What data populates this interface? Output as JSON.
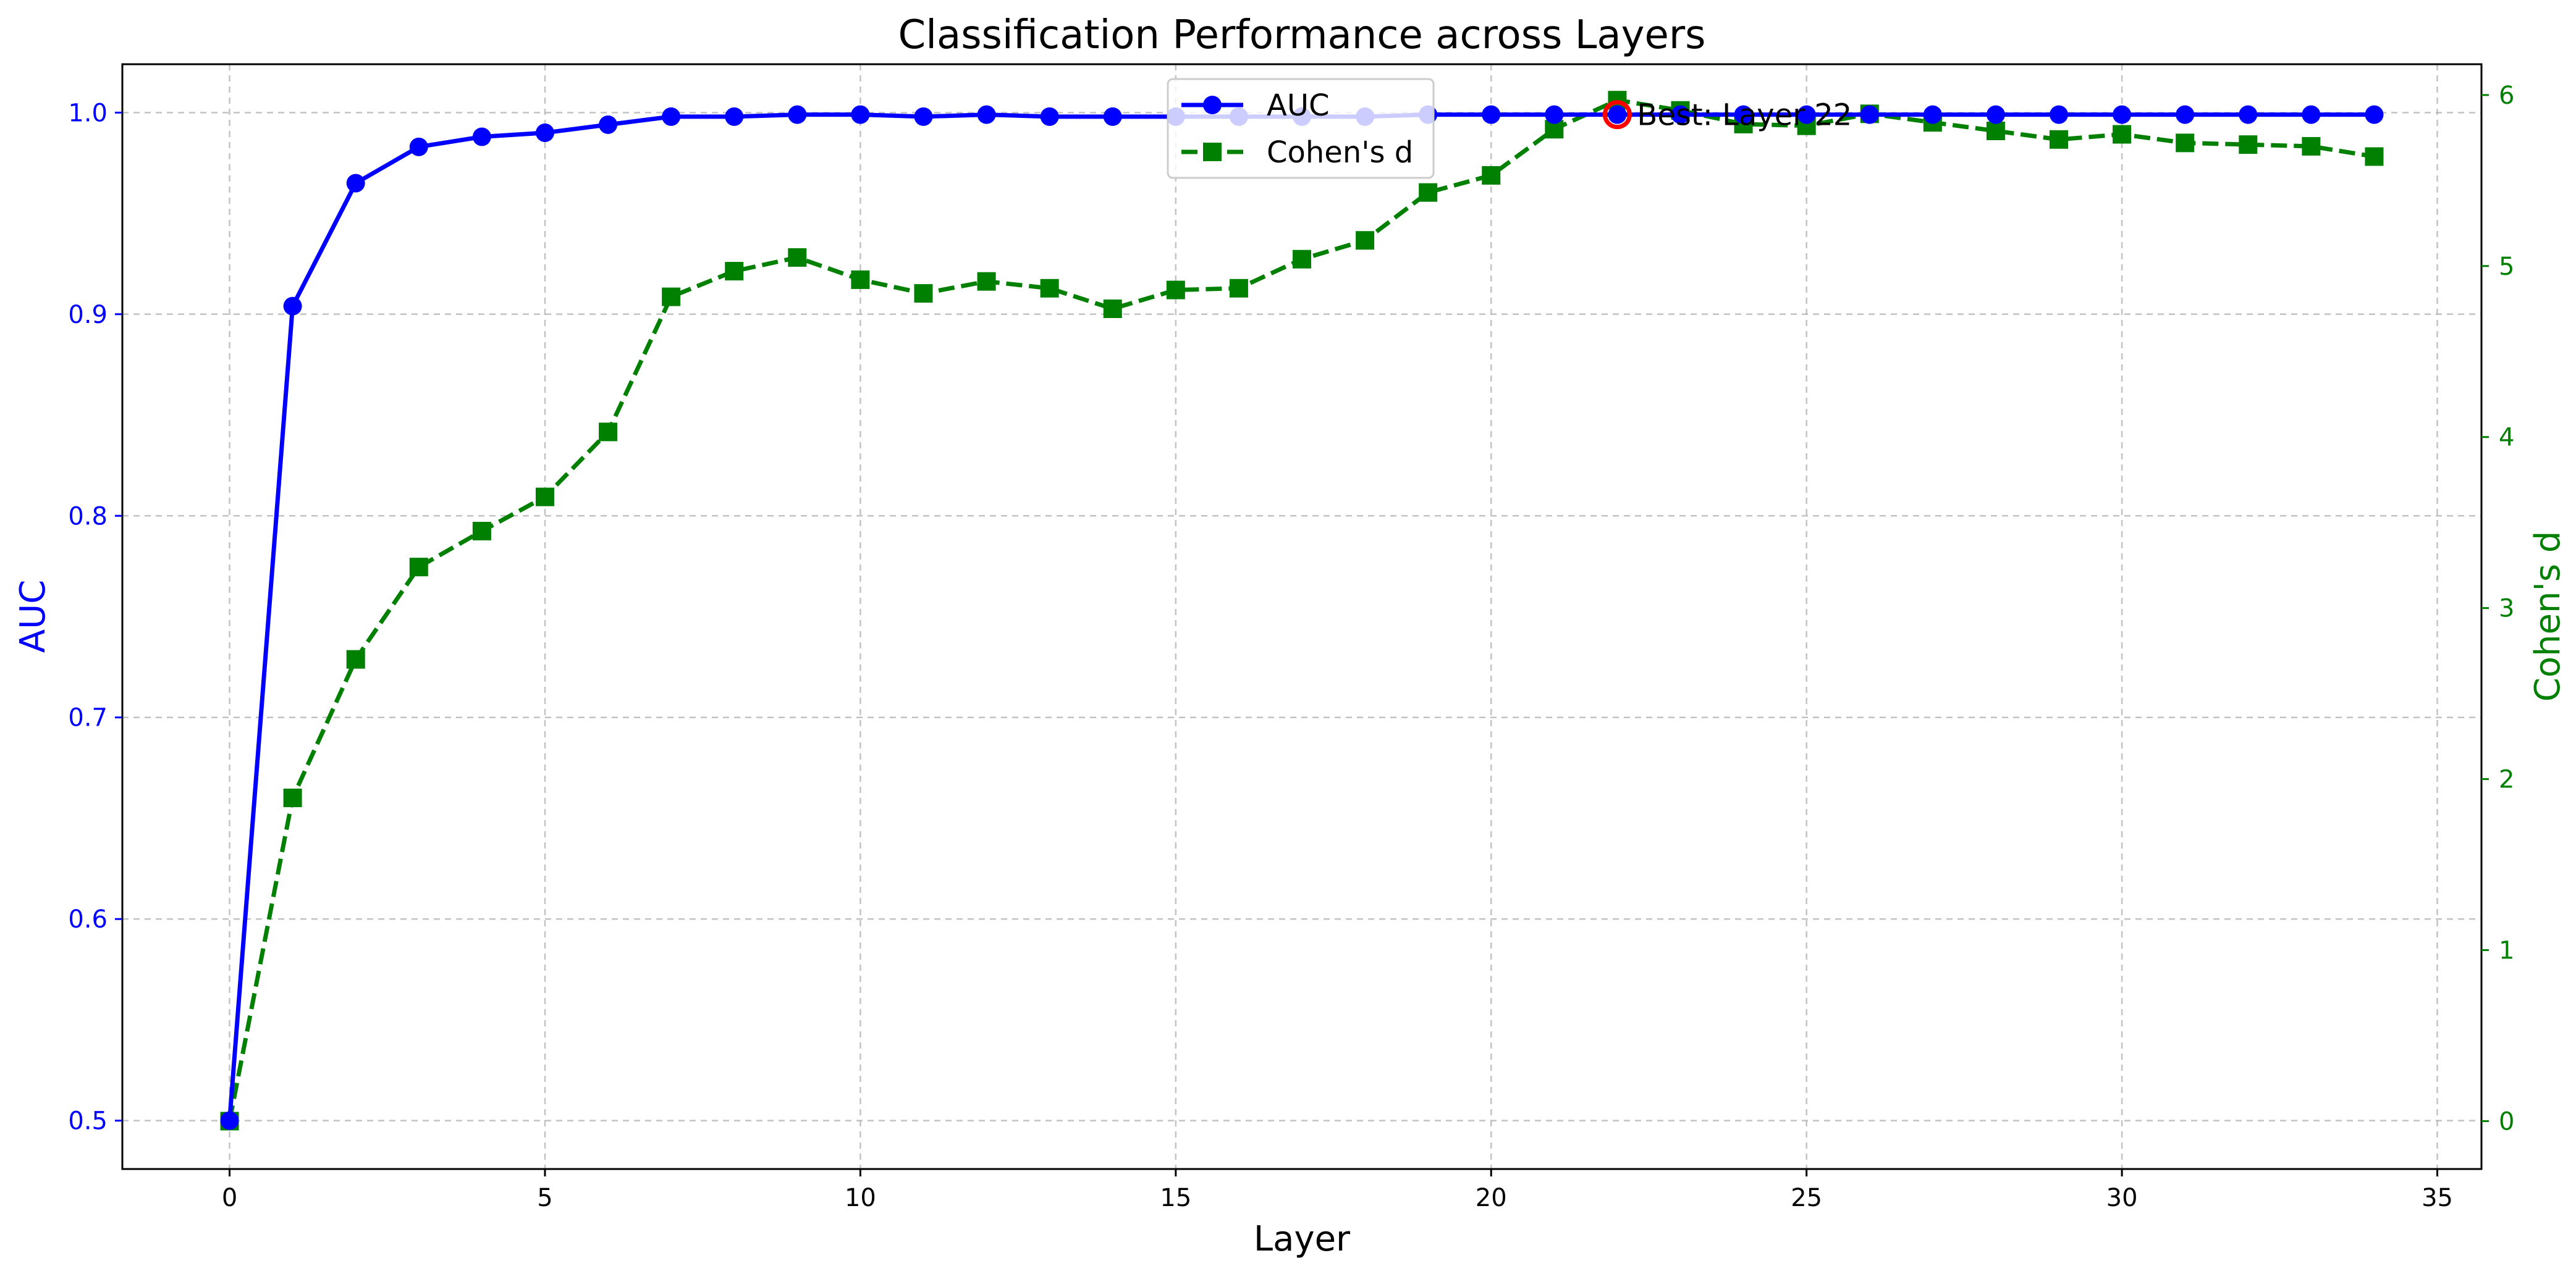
{
  "chart_data": {
    "type": "line",
    "title": "Classification Performance across Layers",
    "xlabel": "Layer",
    "ylabel_left": "AUC",
    "ylabel_right": "Cohen's d",
    "xlim": [
      -1.7,
      35.7
    ],
    "ylim_left": [
      0.476,
      1.024
    ],
    "ylim_right": [
      -0.28,
      6.18
    ],
    "x_ticks": [
      0,
      5,
      10,
      15,
      20,
      25,
      30,
      35
    ],
    "y_ticks_left": [
      0.5,
      0.6,
      0.7,
      0.8,
      0.9,
      1.0
    ],
    "y_ticks_left_labels": [
      "0.5",
      "0.6",
      "0.7",
      "0.8",
      "0.9",
      "1.0"
    ],
    "y_ticks_right": [
      0,
      1,
      2,
      3,
      4,
      5,
      6
    ],
    "grid": true,
    "legend_position": "top-center",
    "x": [
      0,
      1,
      2,
      3,
      4,
      5,
      6,
      7,
      8,
      9,
      10,
      11,
      12,
      13,
      14,
      15,
      16,
      17,
      18,
      19,
      20,
      21,
      22,
      23,
      24,
      25,
      26,
      27,
      28,
      29,
      30,
      31,
      32,
      33,
      34
    ],
    "series": [
      {
        "name": "AUC",
        "axis": "left",
        "color": "#0000ff",
        "marker": "circle",
        "line_style": "solid",
        "values": [
          0.5,
          0.904,
          0.965,
          0.983,
          0.988,
          0.99,
          0.994,
          0.998,
          0.998,
          0.999,
          0.999,
          0.998,
          0.999,
          0.998,
          0.998,
          0.998,
          0.998,
          0.998,
          0.998,
          0.999,
          0.999,
          0.999,
          0.999,
          0.999,
          0.999,
          0.999,
          0.999,
          0.999,
          0.999,
          0.999,
          0.999,
          0.999,
          0.999,
          0.999,
          0.999
        ]
      },
      {
        "name": "Cohen's d",
        "axis": "right",
        "color": "#008000",
        "marker": "square",
        "line_style": "dashed",
        "values": [
          0.0,
          1.89,
          2.7,
          3.24,
          3.45,
          3.65,
          4.03,
          4.82,
          4.97,
          5.05,
          4.92,
          4.84,
          4.91,
          4.87,
          4.75,
          4.86,
          4.87,
          5.04,
          5.15,
          5.43,
          5.53,
          5.8,
          5.97,
          5.91,
          5.83,
          5.82,
          5.89,
          5.84,
          5.79,
          5.74,
          5.77,
          5.72,
          5.71,
          5.7,
          5.64
        ]
      }
    ],
    "annotation": {
      "text": "Best: Layer 22",
      "x": 22,
      "y": 0.999,
      "marker_color": "#ff0000"
    }
  }
}
